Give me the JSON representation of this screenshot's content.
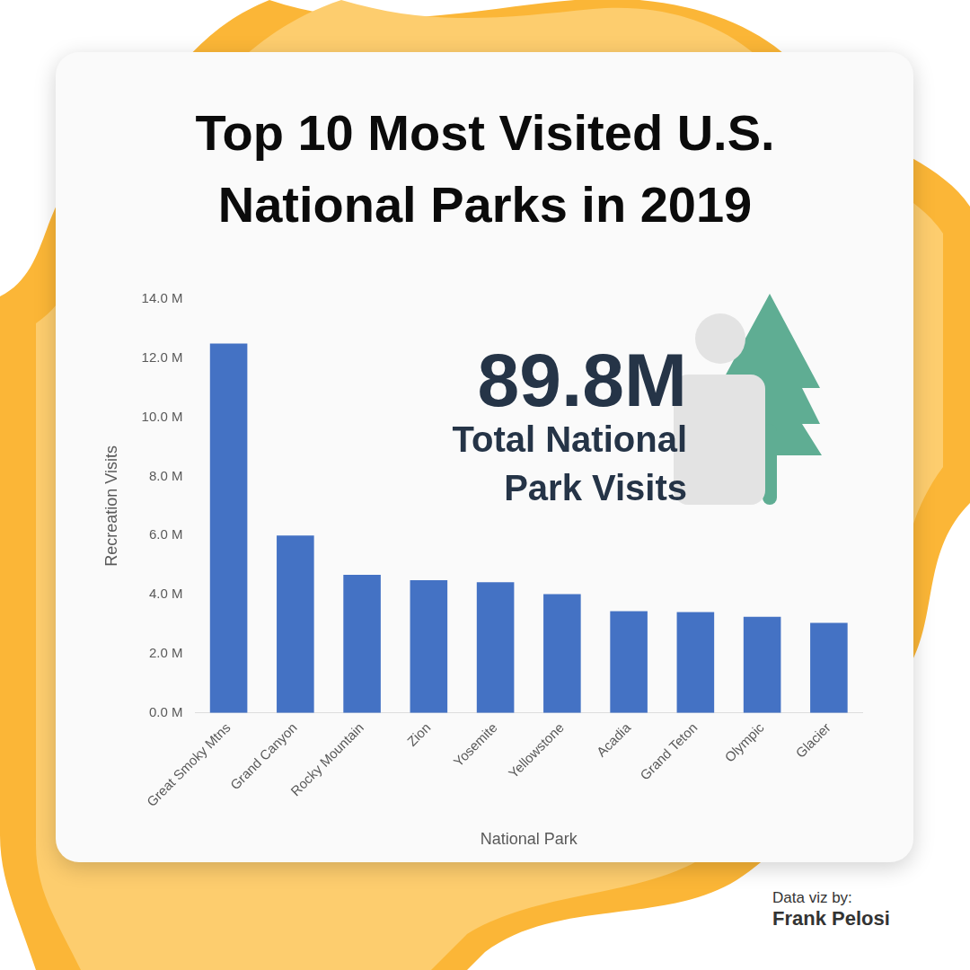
{
  "chart_data": {
    "type": "bar",
    "title": "Top 10 Most Visited U.S. National Parks in 2019",
    "x_label": "National Park",
    "y_label": "Recreation Visits",
    "categories": [
      "Great Smoky Mtns",
      "Grand Canyon",
      "Rocky Mountain",
      "Zion",
      "Yosemite",
      "Yellowstone",
      "Acadia",
      "Grand Teton",
      "Olympic",
      "Glacier"
    ],
    "values": [
      12.5,
      6.0,
      4.67,
      4.49,
      4.42,
      4.02,
      3.44,
      3.41,
      3.25,
      3.05
    ],
    "color": "#4472c4",
    "ylim": [
      0,
      14
    ],
    "yticks": [
      {
        "value": 0,
        "label": "0.0 M"
      },
      {
        "value": 2,
        "label": "2.0 M"
      },
      {
        "value": 4,
        "label": "4.0 M"
      },
      {
        "value": 6,
        "label": "6.0 M"
      },
      {
        "value": 8,
        "label": "8.0 M"
      },
      {
        "value": 10,
        "label": "10.0 M"
      },
      {
        "value": 12,
        "label": "12.0 M"
      },
      {
        "value": 14,
        "label": "14.0 M"
      }
    ],
    "grid": false,
    "annotations": [
      "89.8M",
      "Total National Park Visits"
    ],
    "credit": [
      "Data viz by:",
      "Frank Pelosi"
    ]
  }
}
